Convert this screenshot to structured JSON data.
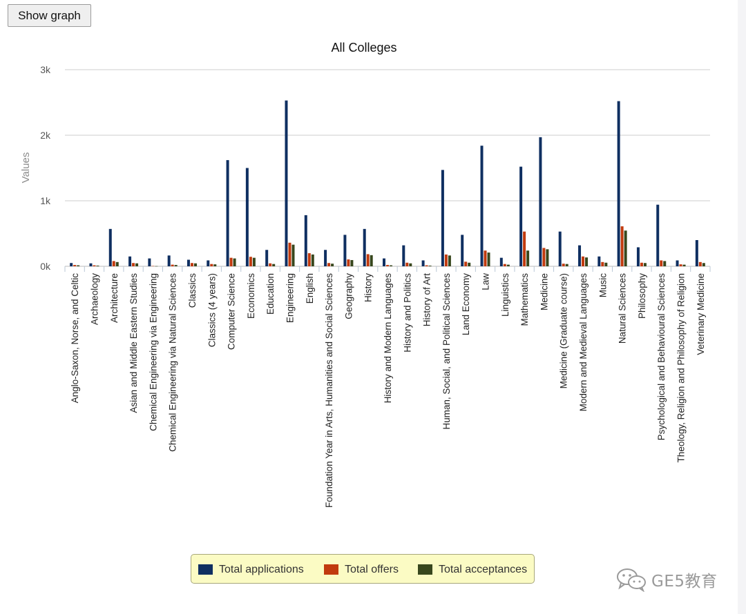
{
  "toolbar": {
    "show_graph_label": "Show graph"
  },
  "watermark": {
    "text": "GE5教育",
    "icon": "wechat-icon"
  },
  "colors": {
    "Total applications": "#0f2f61",
    "Total offers": "#c13a0e",
    "Total acceptances": "#38471d",
    "gridline": "#cccccc",
    "legend_bg": "#fbfbc4"
  },
  "chart_data": {
    "type": "bar",
    "title": "All Colleges",
    "ylabel": "Values",
    "xlabel": "",
    "ylim": [
      0,
      3000
    ],
    "yticks": [
      0,
      1000,
      2000,
      3000
    ],
    "ytick_labels": [
      "0k",
      "1k",
      "2k",
      "3k"
    ],
    "grid": true,
    "legend_position": "bottom",
    "categories": [
      "Anglo-Saxon, Norse, and Celtic",
      "Archaeology",
      "Architecture",
      "Asian and Middle Eastern Studies",
      "Chemical Engineering via Engineering",
      "Chemical Engineering via Natural Sciences",
      "Classics",
      "Classics (4 years)",
      "Computer Science",
      "Economics",
      "Education",
      "Engineering",
      "English",
      "Foundation Year in Arts, Humanities and Social Sciences",
      "Geography",
      "History",
      "History and Modern Languages",
      "History and Politics",
      "History of Art",
      "Human, Social, and Political Sciences",
      "Land Economy",
      "Law",
      "Linguistics",
      "Mathematics",
      "Medicine",
      "Medicine (Graduate course)",
      "Modern and Medieval Languages",
      "Music",
      "Natural Sciences",
      "Philosophy",
      "Psychological and Behavioural Sciences",
      "Theology, Religion and Philosophy of Religion",
      "Veterinary Medicine"
    ],
    "series": [
      {
        "name": "Total applications",
        "values": [
          50,
          45,
          570,
          150,
          120,
          165,
          100,
          90,
          1620,
          1500,
          250,
          2530,
          780,
          250,
          480,
          570,
          120,
          320,
          90,
          1470,
          480,
          1840,
          130,
          1520,
          1970,
          530,
          320,
          150,
          2520,
          290,
          940,
          90,
          400
        ]
      },
      {
        "name": "Total offers",
        "values": [
          20,
          15,
          80,
          50,
          5,
          25,
          50,
          35,
          130,
          145,
          45,
          360,
          200,
          50,
          105,
          185,
          20,
          55,
          15,
          180,
          70,
          240,
          35,
          530,
          280,
          40,
          150,
          65,
          610,
          55,
          90,
          30,
          65
        ]
      },
      {
        "name": "Total acceptances",
        "values": [
          15,
          10,
          65,
          45,
          3,
          20,
          45,
          30,
          120,
          130,
          35,
          330,
          180,
          40,
          95,
          170,
          15,
          45,
          10,
          165,
          55,
          210,
          25,
          240,
          260,
          35,
          135,
          55,
          545,
          50,
          80,
          25,
          50
        ]
      }
    ]
  }
}
